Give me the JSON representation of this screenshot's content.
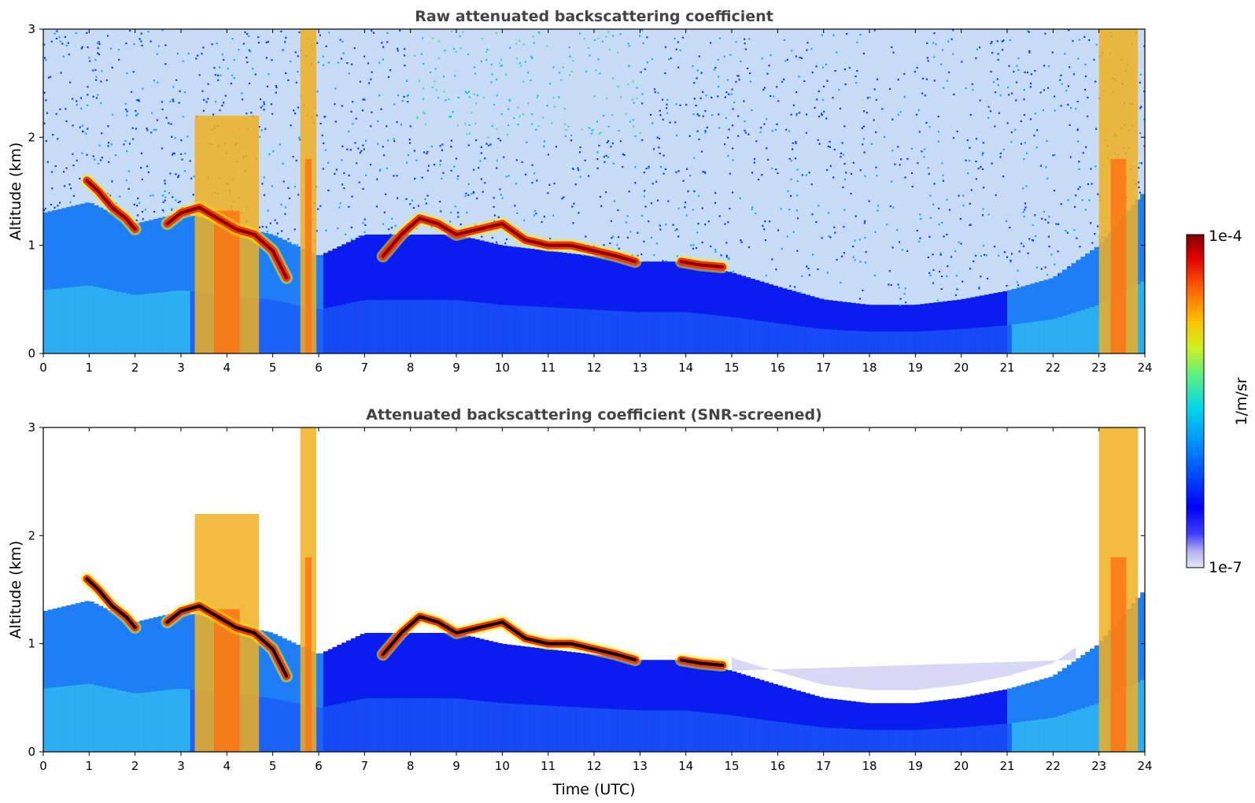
{
  "chart_data": [
    {
      "type": "heatmap",
      "title": "Raw attenuated backscattering coefficient",
      "xlabel": "",
      "ylabel": "Altitude (km)",
      "xlim": [
        0,
        24
      ],
      "ylim": [
        0,
        3
      ],
      "x_ticks": [
        "0",
        "1",
        "2",
        "3",
        "4",
        "5",
        "6",
        "7",
        "8",
        "9",
        "10",
        "11",
        "12",
        "13",
        "14",
        "15",
        "16",
        "17",
        "18",
        "19",
        "20",
        "21",
        "22",
        "23",
        "24"
      ],
      "y_ticks": [
        "0",
        "1",
        "2",
        "3"
      ],
      "screened": false,
      "features": [
        {
          "kind": "cloud_layer",
          "points": [
            [
              0.95,
              1.6
            ],
            [
              1.2,
              1.5
            ],
            [
              1.5,
              1.35
            ],
            [
              1.8,
              1.25
            ],
            [
              2.0,
              1.15
            ]
          ]
        },
        {
          "kind": "cloud_layer",
          "points": [
            [
              2.7,
              1.2
            ],
            [
              3.0,
              1.3
            ],
            [
              3.4,
              1.35
            ],
            [
              3.8,
              1.25
            ],
            [
              4.2,
              1.15
            ],
            [
              4.6,
              1.1
            ],
            [
              5.0,
              0.95
            ],
            [
              5.3,
              0.7
            ]
          ]
        },
        {
          "kind": "cloud_layer",
          "points": [
            [
              7.4,
              0.9
            ],
            [
              7.8,
              1.1
            ],
            [
              8.2,
              1.25
            ],
            [
              8.6,
              1.2
            ],
            [
              9.0,
              1.1
            ],
            [
              9.5,
              1.15
            ],
            [
              10.0,
              1.2
            ],
            [
              10.5,
              1.05
            ],
            [
              11.0,
              1.0
            ],
            [
              11.5,
              1.0
            ],
            [
              12.0,
              0.95
            ],
            [
              12.5,
              0.9
            ],
            [
              12.9,
              0.85
            ]
          ]
        },
        {
          "kind": "cloud_layer",
          "points": [
            [
              13.9,
              0.85
            ],
            [
              14.3,
              0.82
            ],
            [
              14.8,
              0.8
            ]
          ]
        },
        {
          "kind": "dense_column",
          "x_range": [
            3.3,
            4.7
          ],
          "top": 2.2
        },
        {
          "kind": "dense_column",
          "x_range": [
            5.6,
            5.95
          ],
          "top": 3.0
        },
        {
          "kind": "dense_column",
          "x_range": [
            23.0,
            23.85
          ],
          "top": 3.0
        }
      ]
    },
    {
      "type": "heatmap",
      "title": "Attenuated backscattering coefficient (SNR-screened)",
      "xlabel": "Time (UTC)",
      "ylabel": "Altitude (km)",
      "xlim": [
        0,
        24
      ],
      "ylim": [
        0,
        3
      ],
      "x_ticks": [
        "0",
        "1",
        "2",
        "3",
        "4",
        "5",
        "6",
        "7",
        "8",
        "9",
        "10",
        "11",
        "12",
        "13",
        "14",
        "15",
        "16",
        "17",
        "18",
        "19",
        "20",
        "21",
        "22",
        "23",
        "24"
      ],
      "y_ticks": [
        "0",
        "1",
        "2",
        "3"
      ],
      "screened": true,
      "features": [
        {
          "kind": "cloud_layer",
          "points": [
            [
              0.95,
              1.6
            ],
            [
              1.2,
              1.5
            ],
            [
              1.5,
              1.35
            ],
            [
              1.8,
              1.25
            ],
            [
              2.0,
              1.15
            ]
          ]
        },
        {
          "kind": "cloud_layer",
          "points": [
            [
              2.7,
              1.2
            ],
            [
              3.0,
              1.3
            ],
            [
              3.4,
              1.35
            ],
            [
              3.8,
              1.25
            ],
            [
              4.2,
              1.15
            ],
            [
              4.6,
              1.1
            ],
            [
              5.0,
              0.95
            ],
            [
              5.3,
              0.7
            ]
          ]
        },
        {
          "kind": "cloud_layer",
          "points": [
            [
              7.4,
              0.9
            ],
            [
              7.8,
              1.1
            ],
            [
              8.2,
              1.25
            ],
            [
              8.6,
              1.2
            ],
            [
              9.0,
              1.1
            ],
            [
              9.5,
              1.15
            ],
            [
              10.0,
              1.2
            ],
            [
              10.5,
              1.05
            ],
            [
              11.0,
              1.0
            ],
            [
              11.5,
              1.0
            ],
            [
              12.0,
              0.95
            ],
            [
              12.5,
              0.9
            ],
            [
              12.9,
              0.85
            ]
          ]
        },
        {
          "kind": "cloud_layer",
          "points": [
            [
              13.9,
              0.85
            ],
            [
              14.3,
              0.82
            ],
            [
              14.8,
              0.8
            ]
          ]
        },
        {
          "kind": "dense_column",
          "x_range": [
            3.3,
            4.7
          ],
          "top": 2.2
        },
        {
          "kind": "dense_column",
          "x_range": [
            5.6,
            5.95
          ],
          "top": 3.0
        },
        {
          "kind": "dense_column",
          "x_range": [
            23.0,
            23.85
          ],
          "top": 3.0
        }
      ]
    }
  ],
  "colorbar": {
    "label": "1/m/sr",
    "max_label": "1e-4",
    "min_label": "1e-7",
    "colors": [
      "#e6e6fa",
      "#b8b8f0",
      "#8080f0",
      "#0000ff",
      "#0033ff",
      "#0080ff",
      "#00bfff",
      "#00e5e5",
      "#40f0a0",
      "#a0ff40",
      "#f0f000",
      "#ffbf00",
      "#ff8000",
      "#ff3000",
      "#d00000",
      "#800000"
    ]
  },
  "boundary_layer_top_km": [
    [
      0,
      1.3
    ],
    [
      1,
      1.4
    ],
    [
      2,
      1.2
    ],
    [
      3,
      1.3
    ],
    [
      4,
      1.2
    ],
    [
      5,
      1.1
    ],
    [
      6,
      0.9
    ],
    [
      7,
      1.1
    ],
    [
      8,
      1.1
    ],
    [
      9,
      1.1
    ],
    [
      10,
      1.0
    ],
    [
      11,
      0.95
    ],
    [
      12,
      0.9
    ],
    [
      13,
      0.85
    ],
    [
      14,
      0.85
    ],
    [
      15,
      0.75
    ],
    [
      16,
      0.62
    ],
    [
      17,
      0.5
    ],
    [
      18,
      0.45
    ],
    [
      19,
      0.45
    ],
    [
      20,
      0.5
    ],
    [
      21,
      0.58
    ],
    [
      22,
      0.7
    ],
    [
      23,
      1.0
    ],
    [
      24,
      1.5
    ]
  ]
}
